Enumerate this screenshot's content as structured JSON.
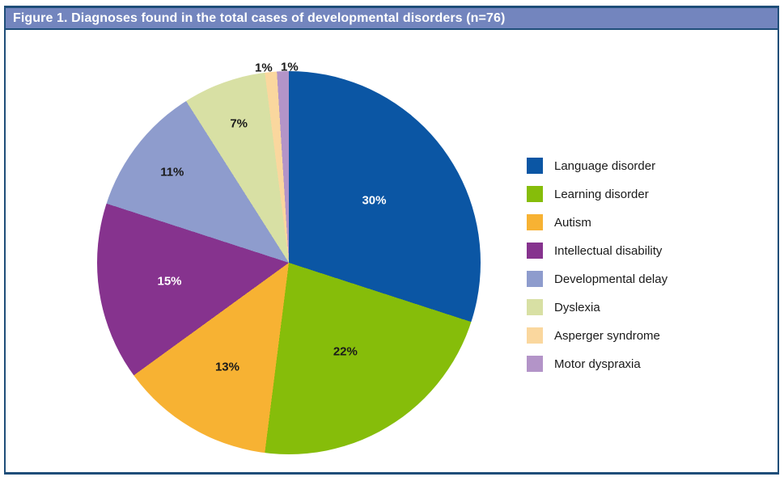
{
  "figure": {
    "title": "Figure 1. Diagnoses found in the total cases of developmental disorders (n=76)",
    "colors": {
      "title_bar_bg": "#7385BE",
      "title_text": "#FFFFFF",
      "frame_border": "#1F4E79",
      "content_bg": "#FFFFFF"
    }
  },
  "chart_data": {
    "type": "pie",
    "title": "Figure 1. Diagnoses found in the total cases of developmental disorders (n=76)",
    "n_total": 76,
    "start_angle_deg": 0,
    "direction": "clockwise",
    "legend_position": "right",
    "label_format": "percent",
    "categories": [
      "Language disorder",
      "Learning disorder",
      "Autism",
      "Intellectual disability",
      "Developmental delay",
      "Dyslexia",
      "Asperger syndrome",
      "Motor dyspraxia"
    ],
    "values": [
      30,
      22,
      13,
      15,
      11,
      7,
      1,
      1
    ],
    "slices": [
      {
        "label": "Language disorder",
        "value": 30,
        "display": "30%",
        "color": "#0B56A4",
        "label_color": "#FFFFFF"
      },
      {
        "label": "Learning disorder",
        "value": 22,
        "display": "22%",
        "color": "#86BD0A",
        "label_color": "#1A1A1A"
      },
      {
        "label": "Autism",
        "value": 13,
        "display": "13%",
        "color": "#F7B233",
        "label_color": "#1A1A1A"
      },
      {
        "label": "Intellectual disability",
        "value": 15,
        "display": "15%",
        "color": "#86338E",
        "label_color": "#FFFFFF"
      },
      {
        "label": "Developmental delay",
        "value": 11,
        "display": "11%",
        "color": "#8E9CCD",
        "label_color": "#1A1A1A"
      },
      {
        "label": "Dyslexia",
        "value": 7,
        "display": "7%",
        "color": "#D8E0A4",
        "label_color": "#1A1A1A"
      },
      {
        "label": "Asperger syndrome",
        "value": 1,
        "display": "1%",
        "color": "#FAD79E",
        "label_color": "#1A1A1A"
      },
      {
        "label": "Motor dyspraxia",
        "value": 1,
        "display": "1%",
        "color": "#B394C8",
        "label_color": "#1A1A1A"
      }
    ]
  }
}
